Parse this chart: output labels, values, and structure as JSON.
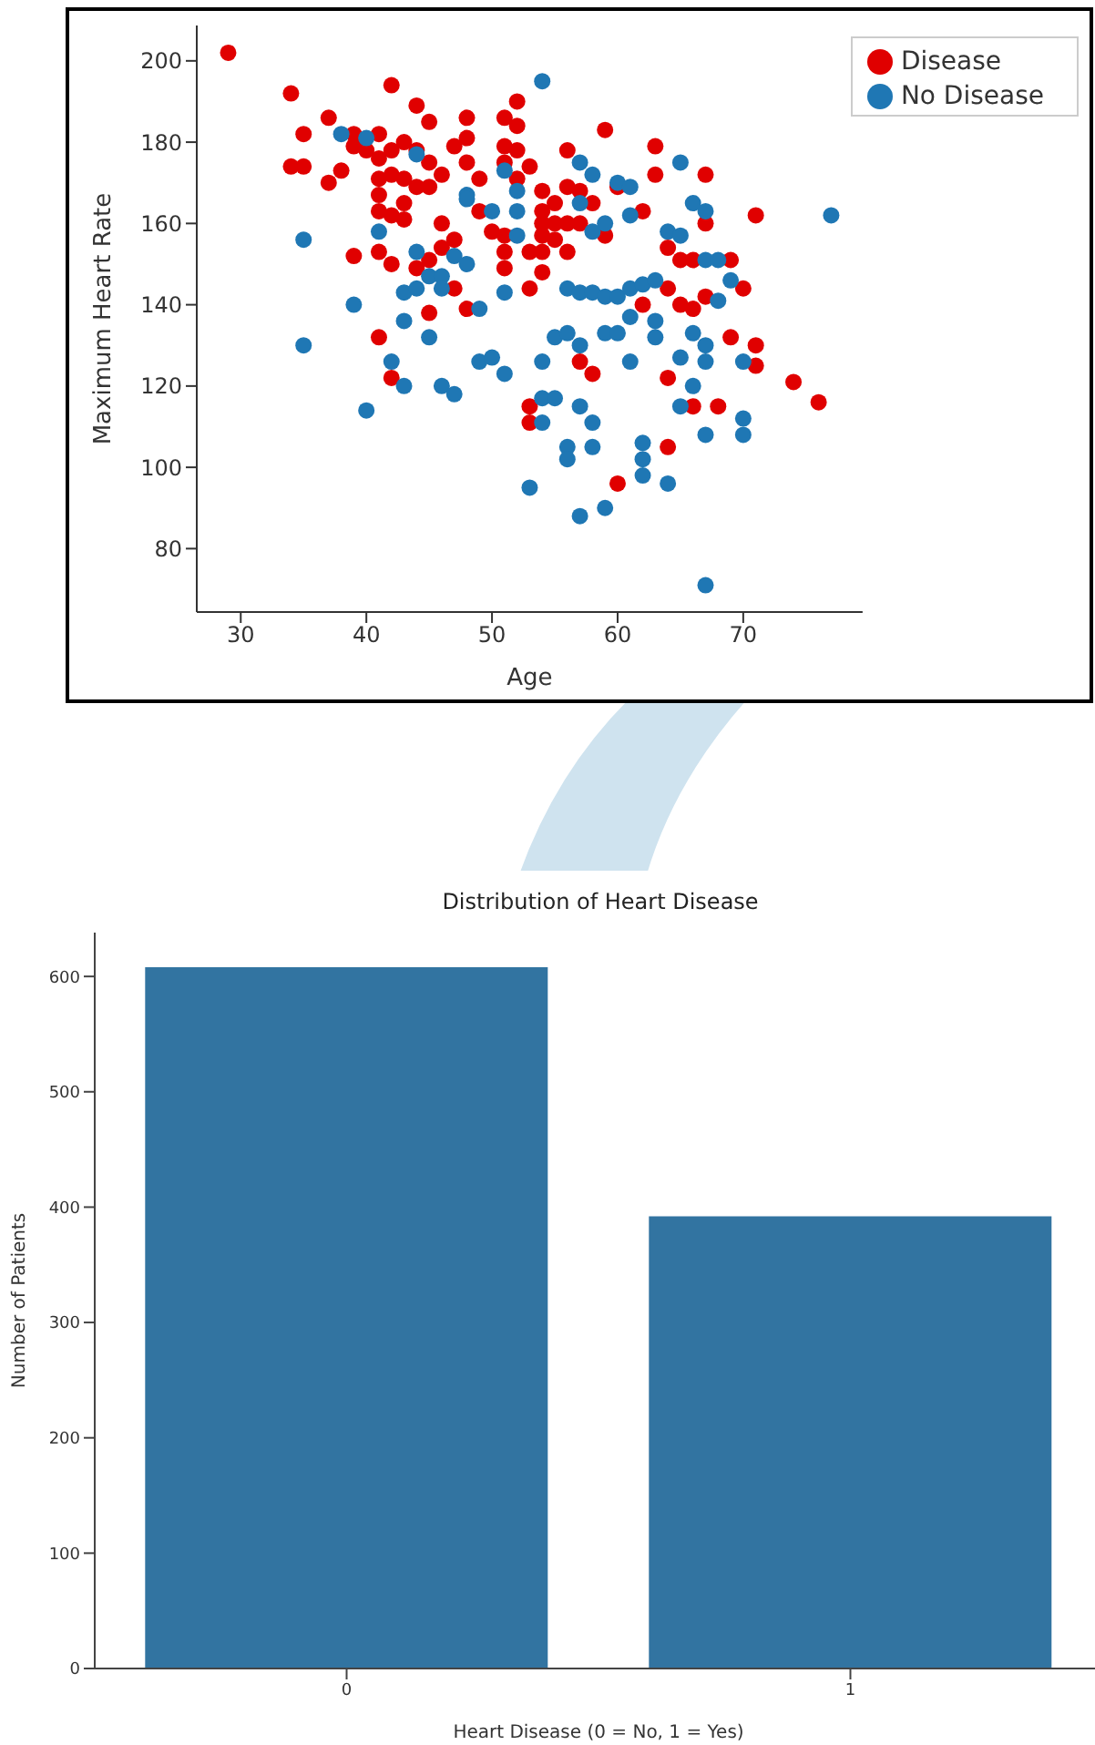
{
  "chart_data": [
    {
      "type": "scatter",
      "xlabel": "Age",
      "ylabel": "Maximum Heart Rate",
      "xlim": [
        26.5,
        79.5
      ],
      "ylim": [
        64.4,
        208.7
      ],
      "xticks": [
        30,
        40,
        50,
        60,
        70
      ],
      "yticks": [
        80,
        100,
        120,
        140,
        160,
        180,
        200
      ],
      "grid": false,
      "legend": "top right",
      "marker": "circle",
      "series": [
        {
          "name": "Disease",
          "color": "#e00000",
          "x": [
            29,
            34,
            34,
            35,
            35,
            37,
            37,
            38,
            39,
            39,
            40,
            41,
            41,
            41,
            41,
            41,
            42,
            42,
            42,
            42,
            42,
            42,
            43,
            43,
            43,
            43,
            44,
            44,
            44,
            44,
            45,
            45,
            45,
            45,
            45,
            46,
            46,
            46,
            47,
            47,
            47,
            48,
            48,
            48,
            48,
            49,
            49,
            41,
            39,
            41,
            51,
            51,
            51,
            51,
            51,
            51,
            52,
            52,
            52,
            52,
            50,
            53,
            53,
            53,
            53,
            53,
            54,
            54,
            54,
            54,
            54,
            54,
            55,
            55,
            55,
            56,
            56,
            56,
            56,
            57,
            57,
            57,
            58,
            58,
            59,
            59,
            60,
            60,
            62,
            62,
            63,
            63,
            64,
            64,
            64,
            64,
            65,
            65,
            66,
            66,
            66,
            67,
            67,
            67,
            68,
            69,
            70,
            69,
            71,
            71,
            71,
            74,
            76
          ],
          "values": [
            202,
            192,
            174,
            174,
            182,
            186,
            170,
            173,
            182,
            179,
            178,
            182,
            176,
            171,
            167,
            163,
            194,
            178,
            172,
            162,
            150,
            122,
            180,
            171,
            165,
            161,
            189,
            178,
            169,
            149,
            185,
            175,
            169,
            138,
            151,
            172,
            160,
            154,
            179,
            156,
            144,
            186,
            181,
            175,
            139,
            171,
            163,
            153,
            152,
            132,
            186,
            179,
            175,
            157,
            153,
            149,
            190,
            184,
            178,
            171,
            158,
            174,
            153,
            144,
            115,
            111,
            168,
            163,
            160,
            157,
            153,
            148,
            165,
            160,
            156,
            178,
            169,
            160,
            153,
            168,
            160,
            126,
            165,
            123,
            183,
            157,
            169,
            96,
            163,
            140,
            179,
            172,
            154,
            144,
            122,
            105,
            151,
            140,
            151,
            139,
            115,
            172,
            160,
            142,
            115,
            151,
            144,
            132,
            162,
            130,
            125,
            121,
            116
          ]
        },
        {
          "name": "No Disease",
          "color": "#1f77b4",
          "x": [
            35,
            35,
            38,
            39,
            40,
            40,
            41,
            42,
            43,
            43,
            43,
            44,
            44,
            44,
            45,
            45,
            46,
            46,
            46,
            47,
            47,
            48,
            48,
            48,
            49,
            49,
            50,
            50,
            54,
            51,
            51,
            52,
            52,
            52,
            51,
            54,
            54,
            54,
            55,
            53,
            55,
            56,
            56,
            56,
            56,
            57,
            57,
            57,
            57,
            57,
            57,
            58,
            58,
            58,
            58,
            58,
            59,
            59,
            59,
            59,
            60,
            60,
            60,
            61,
            61,
            61,
            61,
            61,
            62,
            62,
            62,
            62,
            63,
            63,
            63,
            64,
            64,
            65,
            65,
            65,
            65,
            66,
            66,
            66,
            67,
            67,
            67,
            67,
            67,
            67,
            68,
            68,
            69,
            70,
            70,
            70,
            77
          ],
          "values": [
            156,
            130,
            182,
            140,
            181,
            114,
            158,
            126,
            143,
            136,
            120,
            177,
            153,
            144,
            147,
            132,
            147,
            144,
            120,
            152,
            118,
            150,
            167,
            166,
            139,
            126,
            127,
            163,
            195,
            173,
            143,
            168,
            163,
            157,
            123,
            126,
            117,
            111,
            117,
            95,
            132,
            133,
            144,
            105,
            102,
            175,
            165,
            143,
            130,
            115,
            88,
            172,
            158,
            143,
            111,
            105,
            160,
            142,
            133,
            90,
            170,
            142,
            133,
            169,
            162,
            144,
            137,
            126,
            145,
            106,
            102,
            98,
            146,
            136,
            132,
            96,
            158,
            175,
            157,
            127,
            115,
            165,
            120,
            133,
            163,
            151,
            130,
            126,
            108,
            71,
            151,
            141,
            146,
            126,
            112,
            108,
            162
          ]
        }
      ]
    },
    {
      "type": "bar",
      "title": "Distribution of Heart Disease",
      "xlabel": "Heart Disease (0 = No, 1 = Yes)",
      "ylabel": "Number of Patients",
      "categories": [
        "0",
        "1"
      ],
      "values": [
        608,
        392
      ],
      "color": "#3274a1",
      "ylim": [
        0,
        638
      ],
      "yticks": [
        0,
        100,
        200,
        300,
        400,
        500,
        600
      ],
      "grid": false
    }
  ]
}
